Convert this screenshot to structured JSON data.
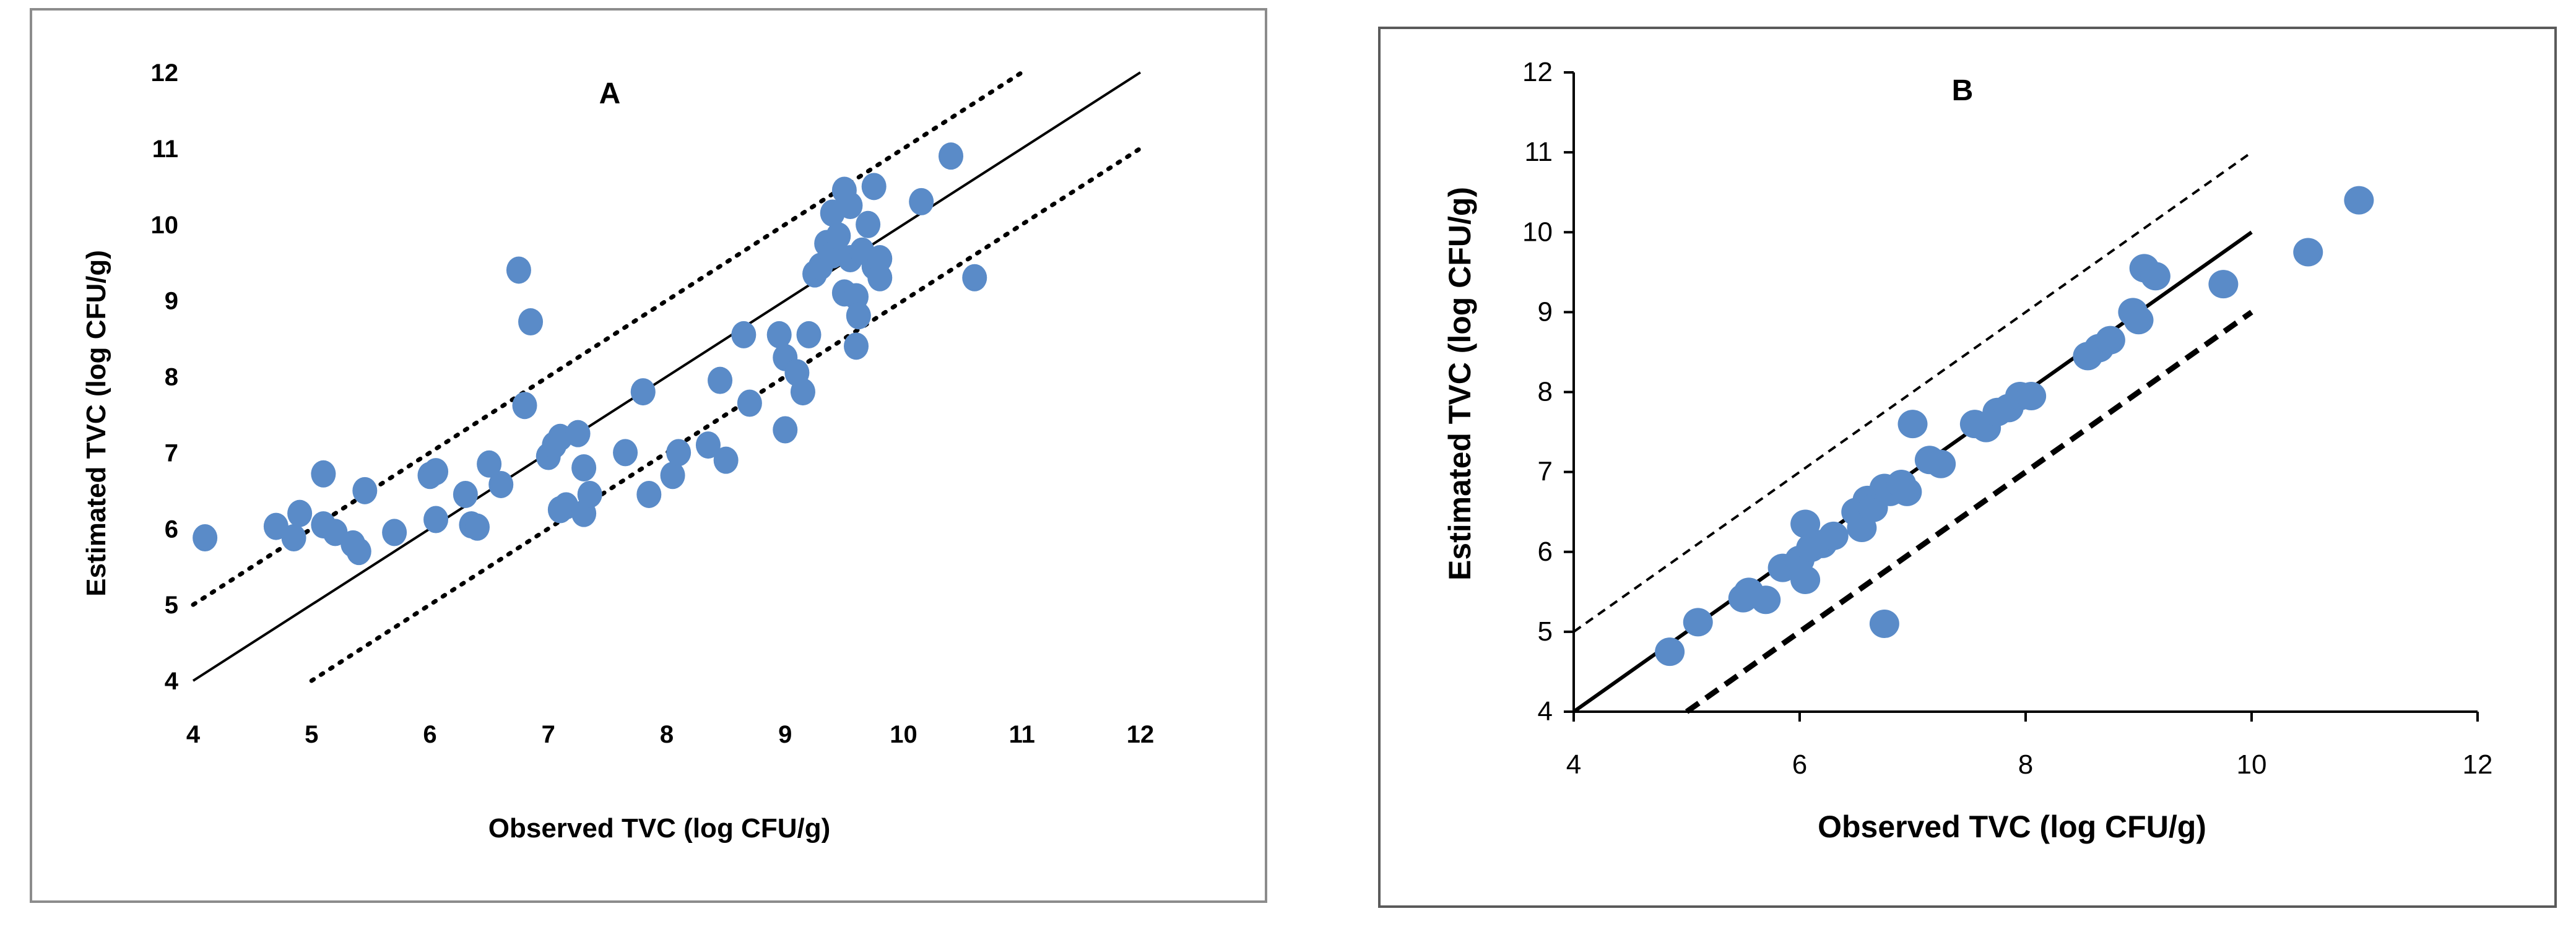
{
  "chart_data": [
    {
      "type": "scatter",
      "title": "A",
      "xlabel": "Observed TVC (log CFU/g)",
      "ylabel": "Estimated TVC (log CFU/g)",
      "xlim": [
        4,
        12
      ],
      "ylim": [
        4,
        12
      ],
      "xticks": [
        "4",
        "5",
        "6",
        "7",
        "8",
        "9",
        "10",
        "11",
        "12"
      ],
      "yticks": [
        "4",
        "5",
        "6",
        "7",
        "8",
        "9",
        "10",
        "11",
        "12"
      ],
      "grid": false,
      "marker_color": "#5a8bc8",
      "lines": [
        {
          "name": "line of equality",
          "style": "solid",
          "points": [
            [
              4,
              4
            ],
            [
              12,
              12
            ]
          ]
        },
        {
          "name": "upper bound (+1 log)",
          "style": "dotted",
          "points": [
            [
              4,
              5
            ],
            [
              11,
              12
            ]
          ]
        },
        {
          "name": "lower bound (-1 log)",
          "style": "dotted",
          "points": [
            [
              5,
              4
            ],
            [
              12,
              11
            ]
          ]
        }
      ],
      "points": [
        [
          4.1,
          5.88
        ],
        [
          4.7,
          6.03
        ],
        [
          4.85,
          5.88
        ],
        [
          4.9,
          6.2
        ],
        [
          5.1,
          6.72
        ],
        [
          5.1,
          6.05
        ],
        [
          5.2,
          5.95
        ],
        [
          5.35,
          5.8
        ],
        [
          5.4,
          5.7
        ],
        [
          5.45,
          6.5
        ],
        [
          5.7,
          5.95
        ],
        [
          6.0,
          6.7
        ],
        [
          6.05,
          6.12
        ],
        [
          6.05,
          6.75
        ],
        [
          6.3,
          6.45
        ],
        [
          6.35,
          6.05
        ],
        [
          6.4,
          6.02
        ],
        [
          6.5,
          6.85
        ],
        [
          6.6,
          6.58
        ],
        [
          6.75,
          9.4
        ],
        [
          6.8,
          7.62
        ],
        [
          6.85,
          8.72
        ],
        [
          7.0,
          6.95
        ],
        [
          7.05,
          7.1
        ],
        [
          7.1,
          7.2
        ],
        [
          7.1,
          6.25
        ],
        [
          7.15,
          6.3
        ],
        [
          7.25,
          7.25
        ],
        [
          7.3,
          6.2
        ],
        [
          7.3,
          6.8
        ],
        [
          7.35,
          6.45
        ],
        [
          7.65,
          7.0
        ],
        [
          7.8,
          7.8
        ],
        [
          7.85,
          6.45
        ],
        [
          8.05,
          6.7
        ],
        [
          8.1,
          7.0
        ],
        [
          8.35,
          7.1
        ],
        [
          8.45,
          7.95
        ],
        [
          8.5,
          6.9
        ],
        [
          8.65,
          8.55
        ],
        [
          8.7,
          7.65
        ],
        [
          8.95,
          8.55
        ],
        [
          9.0,
          8.25
        ],
        [
          9.0,
          7.3
        ],
        [
          9.1,
          8.05
        ],
        [
          9.15,
          7.8
        ],
        [
          9.2,
          8.55
        ],
        [
          9.25,
          9.35
        ],
        [
          9.3,
          9.45
        ],
        [
          9.35,
          9.75
        ],
        [
          9.4,
          9.6
        ],
        [
          9.4,
          10.15
        ],
        [
          9.45,
          9.85
        ],
        [
          9.5,
          9.1
        ],
        [
          9.5,
          10.45
        ],
        [
          9.55,
          10.25
        ],
        [
          9.55,
          9.55
        ],
        [
          9.6,
          9.05
        ],
        [
          9.6,
          8.4
        ],
        [
          9.62,
          8.8
        ],
        [
          9.65,
          9.65
        ],
        [
          9.7,
          10.0
        ],
        [
          9.75,
          10.5
        ],
        [
          9.75,
          9.45
        ],
        [
          9.8,
          9.55
        ],
        [
          9.8,
          9.3
        ],
        [
          10.15,
          10.3
        ],
        [
          10.4,
          10.9
        ],
        [
          10.6,
          9.3
        ]
      ]
    },
    {
      "type": "scatter",
      "title": "B",
      "xlabel": "Observed  TVC (log CFU/g)",
      "ylabel": "Estimated TVC (log CFU/g)",
      "xlim": [
        4,
        12
      ],
      "ylim": [
        4,
        12
      ],
      "xticks": [
        "4",
        "6",
        "8",
        "10",
        "12"
      ],
      "yticks": [
        "4",
        "5",
        "6",
        "7",
        "8",
        "9",
        "10",
        "11",
        "12"
      ],
      "grid": false,
      "marker_color": "#5a8bc8",
      "lines": [
        {
          "name": "line of equality",
          "style": "solid",
          "points": [
            [
              4,
              4
            ],
            [
              10,
              10
            ]
          ]
        },
        {
          "name": "upper bound (+1 log)",
          "style": "dashed-thin",
          "points": [
            [
              4,
              5
            ],
            [
              10,
              11
            ]
          ]
        },
        {
          "name": "lower bound (-1 log)",
          "style": "dashed-thick",
          "points": [
            [
              5,
              4
            ],
            [
              10,
              9
            ]
          ]
        }
      ],
      "points": [
        [
          4.85,
          4.75
        ],
        [
          5.1,
          5.12
        ],
        [
          5.5,
          5.42
        ],
        [
          5.55,
          5.5
        ],
        [
          5.7,
          5.4
        ],
        [
          5.85,
          5.8
        ],
        [
          6.0,
          5.9
        ],
        [
          6.05,
          6.35
        ],
        [
          6.1,
          6.05
        ],
        [
          6.05,
          5.65
        ],
        [
          6.2,
          6.1
        ],
        [
          6.3,
          6.2
        ],
        [
          6.5,
          6.5
        ],
        [
          6.55,
          6.3
        ],
        [
          6.6,
          6.65
        ],
        [
          6.65,
          6.55
        ],
        [
          6.75,
          6.8
        ],
        [
          6.8,
          6.75
        ],
        [
          6.9,
          6.85
        ],
        [
          6.95,
          6.75
        ],
        [
          7.0,
          7.6
        ],
        [
          6.75,
          5.1
        ],
        [
          7.15,
          7.15
        ],
        [
          7.25,
          7.1
        ],
        [
          7.55,
          7.6
        ],
        [
          7.65,
          7.55
        ],
        [
          7.75,
          7.75
        ],
        [
          7.85,
          7.8
        ],
        [
          7.95,
          7.95
        ],
        [
          8.05,
          7.95
        ],
        [
          8.55,
          8.45
        ],
        [
          8.65,
          8.55
        ],
        [
          8.75,
          8.65
        ],
        [
          8.95,
          9.0
        ],
        [
          9.0,
          8.9
        ],
        [
          9.05,
          9.55
        ],
        [
          9.15,
          9.45
        ],
        [
          9.75,
          9.35
        ],
        [
          10.5,
          9.75
        ],
        [
          10.95,
          10.4
        ]
      ]
    }
  ]
}
